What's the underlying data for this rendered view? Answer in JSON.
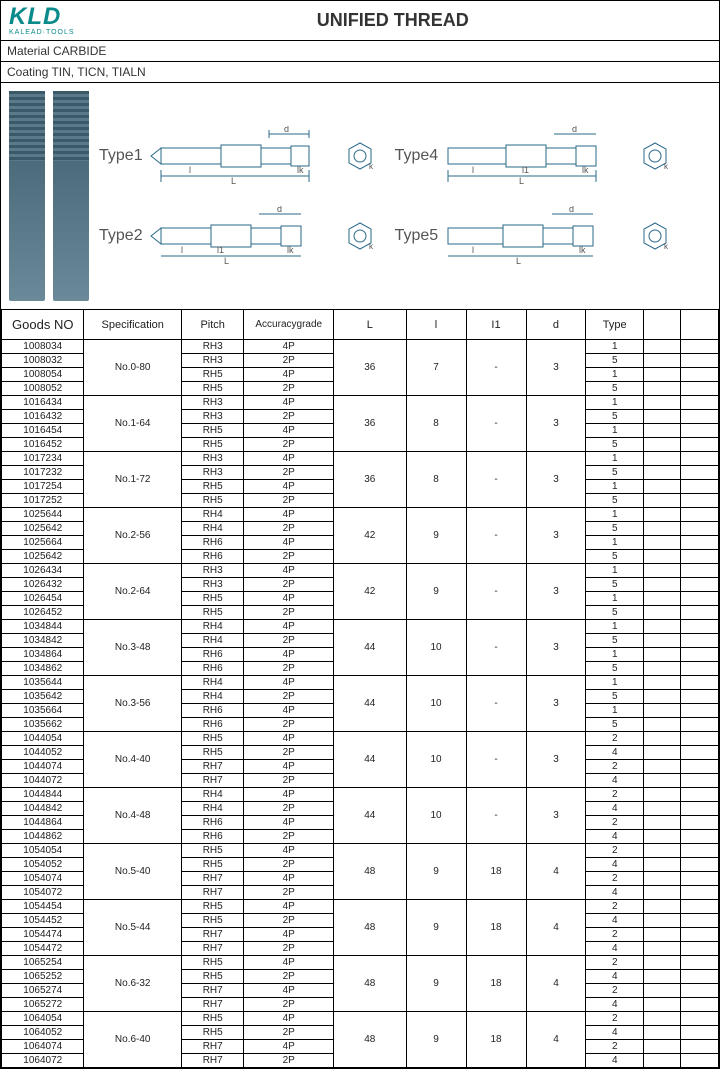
{
  "logo_text": "KLD",
  "logo_sub": "KALEAD·TOOLS",
  "title": "UNIFIED THREAD",
  "material_label": "Material  CARBIDE",
  "coating_label": "Coating   TIN,  TICN,  TIALN",
  "type_labels": {
    "t1": "Type1",
    "t2": "Type2",
    "t4": "Type4",
    "t5": "Type5"
  },
  "dim_letters": {
    "d": "d",
    "L": "L",
    "l": "l",
    "l1": "l1",
    "lk": "lk",
    "k": "k"
  },
  "headers": {
    "goods": "Goods NO",
    "spec": "Specification",
    "pitch": "Pitch",
    "acc": "Accuracygrade",
    "L": "L",
    "l": "l",
    "I1": "I1",
    "d": "d",
    "type": "Type"
  },
  "groups": [
    {
      "spec": "No.0-80",
      "L": "36",
      "l": "7",
      "I1": "-",
      "d": "3",
      "rows": [
        {
          "goods": "1008034",
          "pitch": "RH3",
          "acc": "4P",
          "type": "1"
        },
        {
          "goods": "1008032",
          "pitch": "RH3",
          "acc": "2P",
          "type": "5"
        },
        {
          "goods": "1008054",
          "pitch": "RH5",
          "acc": "4P",
          "type": "1"
        },
        {
          "goods": "1008052",
          "pitch": "RH5",
          "acc": "2P",
          "type": "5"
        }
      ]
    },
    {
      "spec": "No.1-64",
      "L": "36",
      "l": "8",
      "I1": "-",
      "d": "3",
      "rows": [
        {
          "goods": "1016434",
          "pitch": "RH3",
          "acc": "4P",
          "type": "1"
        },
        {
          "goods": "1016432",
          "pitch": "RH3",
          "acc": "2P",
          "type": "5"
        },
        {
          "goods": "1016454",
          "pitch": "RH5",
          "acc": "4P",
          "type": "1"
        },
        {
          "goods": "1016452",
          "pitch": "RH5",
          "acc": "2P",
          "type": "5"
        }
      ]
    },
    {
      "spec": "No.1-72",
      "L": "36",
      "l": "8",
      "I1": "-",
      "d": "3",
      "rows": [
        {
          "goods": "1017234",
          "pitch": "RH3",
          "acc": "4P",
          "type": "1"
        },
        {
          "goods": "1017232",
          "pitch": "RH3",
          "acc": "2P",
          "type": "5"
        },
        {
          "goods": "1017254",
          "pitch": "RH5",
          "acc": "4P",
          "type": "1"
        },
        {
          "goods": "1017252",
          "pitch": "RH5",
          "acc": "2P",
          "type": "5"
        }
      ]
    },
    {
      "spec": "No.2-56",
      "L": "42",
      "l": "9",
      "I1": "-",
      "d": "3",
      "rows": [
        {
          "goods": "1025644",
          "pitch": "RH4",
          "acc": "4P",
          "type": "1"
        },
        {
          "goods": "1025642",
          "pitch": "RH4",
          "acc": "2P",
          "type": "5"
        },
        {
          "goods": "1025664",
          "pitch": "RH6",
          "acc": "4P",
          "type": "1"
        },
        {
          "goods": "1025642",
          "pitch": "RH6",
          "acc": "2P",
          "type": "5"
        }
      ]
    },
    {
      "spec": "No.2-64",
      "L": "42",
      "l": "9",
      "I1": "-",
      "d": "3",
      "rows": [
        {
          "goods": "1026434",
          "pitch": "RH3",
          "acc": "4P",
          "type": "1"
        },
        {
          "goods": "1026432",
          "pitch": "RH3",
          "acc": "2P",
          "type": "5"
        },
        {
          "goods": "1026454",
          "pitch": "RH5",
          "acc": "4P",
          "type": "1"
        },
        {
          "goods": "1026452",
          "pitch": "RH5",
          "acc": "2P",
          "type": "5"
        }
      ]
    },
    {
      "spec": "No.3-48",
      "L": "44",
      "l": "10",
      "I1": "-",
      "d": "3",
      "rows": [
        {
          "goods": "1034844",
          "pitch": "RH4",
          "acc": "4P",
          "type": "1"
        },
        {
          "goods": "1034842",
          "pitch": "RH4",
          "acc": "2P",
          "type": "5"
        },
        {
          "goods": "1034864",
          "pitch": "RH6",
          "acc": "4P",
          "type": "1"
        },
        {
          "goods": "1034862",
          "pitch": "RH6",
          "acc": "2P",
          "type": "5"
        }
      ]
    },
    {
      "spec": "No.3-56",
      "L": "44",
      "l": "10",
      "I1": "-",
      "d": "3",
      "rows": [
        {
          "goods": "1035644",
          "pitch": "RH4",
          "acc": "4P",
          "type": "1"
        },
        {
          "goods": "1035642",
          "pitch": "RH4",
          "acc": "2P",
          "type": "5"
        },
        {
          "goods": "1035664",
          "pitch": "RH6",
          "acc": "4P",
          "type": "1"
        },
        {
          "goods": "1035662",
          "pitch": "RH6",
          "acc": "2P",
          "type": "5"
        }
      ]
    },
    {
      "spec": "No.4-40",
      "L": "44",
      "l": "10",
      "I1": "-",
      "d": "3",
      "rows": [
        {
          "goods": "1044054",
          "pitch": "RH5",
          "acc": "4P",
          "type": "2"
        },
        {
          "goods": "1044052",
          "pitch": "RH5",
          "acc": "2P",
          "type": "4"
        },
        {
          "goods": "1044074",
          "pitch": "RH7",
          "acc": "4P",
          "type": "2"
        },
        {
          "goods": "1044072",
          "pitch": "RH7",
          "acc": "2P",
          "type": "4"
        }
      ]
    },
    {
      "spec": "No.4-48",
      "L": "44",
      "l": "10",
      "I1": "-",
      "d": "3",
      "rows": [
        {
          "goods": "1044844",
          "pitch": "RH4",
          "acc": "4P",
          "type": "2"
        },
        {
          "goods": "1044842",
          "pitch": "RH4",
          "acc": "2P",
          "type": "4"
        },
        {
          "goods": "1044864",
          "pitch": "RH6",
          "acc": "4P",
          "type": "2"
        },
        {
          "goods": "1044862",
          "pitch": "RH6",
          "acc": "2P",
          "type": "4"
        }
      ]
    },
    {
      "spec": "No.5-40",
      "L": "48",
      "l": "9",
      "I1": "18",
      "d": "4",
      "rows": [
        {
          "goods": "1054054",
          "pitch": "RH5",
          "acc": "4P",
          "type": "2"
        },
        {
          "goods": "1054052",
          "pitch": "RH5",
          "acc": "2P",
          "type": "4"
        },
        {
          "goods": "1054074",
          "pitch": "RH7",
          "acc": "4P",
          "type": "2"
        },
        {
          "goods": "1054072",
          "pitch": "RH7",
          "acc": "2P",
          "type": "4"
        }
      ]
    },
    {
      "spec": "No.5-44",
      "L": "48",
      "l": "9",
      "I1": "18",
      "d": "4",
      "rows": [
        {
          "goods": "1054454",
          "pitch": "RH5",
          "acc": "4P",
          "type": "2"
        },
        {
          "goods": "1054452",
          "pitch": "RH5",
          "acc": "2P",
          "type": "4"
        },
        {
          "goods": "1054474",
          "pitch": "RH7",
          "acc": "4P",
          "type": "2"
        },
        {
          "goods": "1054472",
          "pitch": "RH7",
          "acc": "2P",
          "type": "4"
        }
      ]
    },
    {
      "spec": "No.6-32",
      "L": "48",
      "l": "9",
      "I1": "18",
      "d": "4",
      "rows": [
        {
          "goods": "1065254",
          "pitch": "RH5",
          "acc": "4P",
          "type": "2"
        },
        {
          "goods": "1065252",
          "pitch": "RH5",
          "acc": "2P",
          "type": "4"
        },
        {
          "goods": "1065274",
          "pitch": "RH7",
          "acc": "4P",
          "type": "2"
        },
        {
          "goods": "1065272",
          "pitch": "RH7",
          "acc": "2P",
          "type": "4"
        }
      ]
    },
    {
      "spec": "No.6-40",
      "L": "48",
      "l": "9",
      "I1": "18",
      "d": "4",
      "rows": [
        {
          "goods": "1064054",
          "pitch": "RH5",
          "acc": "4P",
          "type": "2"
        },
        {
          "goods": "1064052",
          "pitch": "RH5",
          "acc": "2P",
          "type": "4"
        },
        {
          "goods": "1064074",
          "pitch": "RH7",
          "acc": "4P",
          "type": "2"
        },
        {
          "goods": "1064072",
          "pitch": "RH7",
          "acc": "2P",
          "type": "4"
        }
      ]
    }
  ],
  "colors": {
    "accent": "#0a8a8a",
    "line": "#2a6a8a",
    "border": "#000000"
  }
}
